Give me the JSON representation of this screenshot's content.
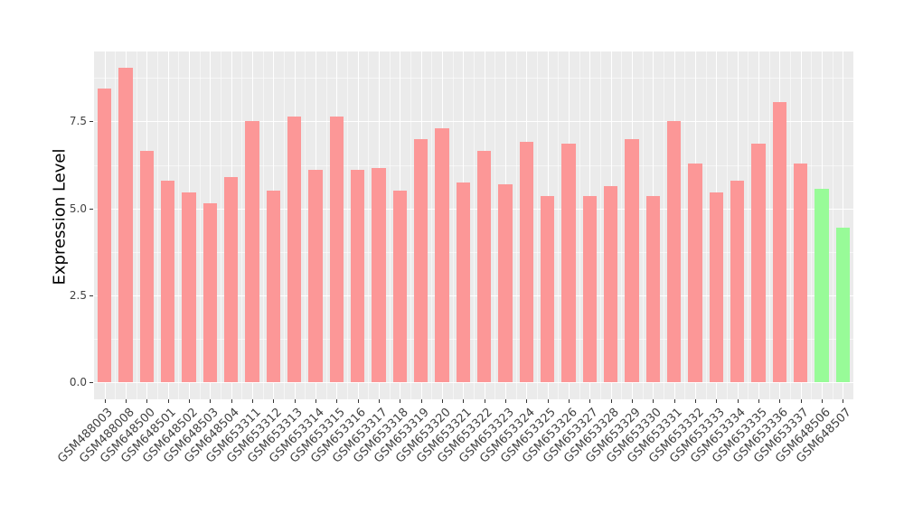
{
  "chart_data": {
    "type": "bar",
    "title": "",
    "xlabel": "",
    "ylabel": "Expression Level",
    "categories": [
      "GSM488003",
      "GSM488008",
      "GSM648500",
      "GSM648501",
      "GSM648502",
      "GSM648503",
      "GSM648504",
      "GSM653311",
      "GSM653312",
      "GSM653313",
      "GSM653314",
      "GSM653315",
      "GSM653316",
      "GSM653317",
      "GSM653318",
      "GSM653319",
      "GSM653320",
      "GSM653321",
      "GSM653322",
      "GSM653323",
      "GSM653324",
      "GSM653325",
      "GSM653326",
      "GSM653327",
      "GSM653328",
      "GSM653329",
      "GSM653330",
      "GSM653331",
      "GSM653332",
      "GSM653333",
      "GSM653334",
      "GSM653335",
      "GSM653336",
      "GSM653337",
      "GSM648506",
      "GSM648507"
    ],
    "values": [
      8.45,
      9.05,
      6.65,
      5.8,
      5.45,
      5.15,
      5.9,
      7.5,
      5.5,
      7.65,
      6.1,
      7.65,
      6.1,
      6.15,
      5.5,
      7.0,
      7.3,
      5.75,
      6.65,
      5.7,
      6.9,
      5.35,
      6.85,
      5.35,
      5.65,
      7.0,
      5.35,
      7.5,
      6.3,
      5.45,
      5.8,
      6.85,
      8.05,
      6.3,
      5.55,
      4.45
    ],
    "highlight_categories": [
      "GSM648506",
      "GSM648507"
    ],
    "colors": {
      "bar_default": "#FC9797",
      "bar_highlight": "#98FB98",
      "panel_background": "#EBEBEB",
      "grid_major": "#FFFFFF",
      "grid_minor": "rgba(255,255,255,0.55)",
      "tick_text": "#424242",
      "axis_title_text": "#000000"
    },
    "yticks": {
      "values": [
        0,
        2.5,
        5,
        7.5
      ],
      "labels": [
        "0.0",
        "2.5",
        "5.0",
        "7.5"
      ]
    },
    "ylim": [
      -0.49,
      9.51
    ],
    "bar_width_ratio": 0.67,
    "grid": true,
    "legend": "none"
  }
}
